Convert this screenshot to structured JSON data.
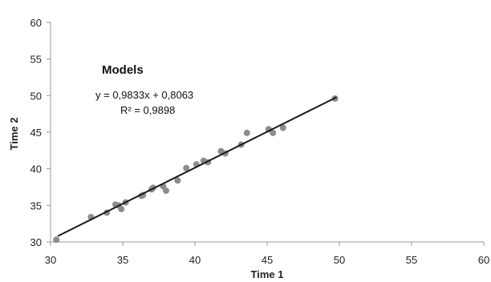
{
  "chart_data": {
    "type": "scatter",
    "xlabel": "Time 1",
    "ylabel": "Time 2",
    "xlim": [
      30,
      60
    ],
    "ylim": [
      30,
      60
    ],
    "xticks": [
      "30",
      "35",
      "40",
      "45",
      "50",
      "55",
      "60"
    ],
    "yticks": [
      "30",
      "35",
      "40",
      "45",
      "50",
      "55",
      "60"
    ],
    "grid": false,
    "legend": "none",
    "annotation_title": "Models",
    "equation": "y = 0,9833x + 0,8063",
    "r_squared": "R² = 0,9898",
    "trendline": {
      "slope": 0.9833,
      "intercept": 0.8063,
      "x_range": [
        30.5,
        49.8
      ]
    },
    "marker_color": "#8c8c8c",
    "line_color": "#1a1a1a",
    "points": [
      {
        "x": 30.4,
        "y": 30.3
      },
      {
        "x": 32.8,
        "y": 33.4
      },
      {
        "x": 33.9,
        "y": 34.0
      },
      {
        "x": 34.5,
        "y": 35.1
      },
      {
        "x": 34.7,
        "y": 35.0
      },
      {
        "x": 34.9,
        "y": 34.5
      },
      {
        "x": 35.2,
        "y": 35.4
      },
      {
        "x": 36.3,
        "y": 36.3
      },
      {
        "x": 36.4,
        "y": 36.4
      },
      {
        "x": 37.0,
        "y": 37.2
      },
      {
        "x": 37.1,
        "y": 37.4
      },
      {
        "x": 37.8,
        "y": 37.6
      },
      {
        "x": 38.0,
        "y": 37.0
      },
      {
        "x": 38.8,
        "y": 38.4
      },
      {
        "x": 39.4,
        "y": 40.1
      },
      {
        "x": 40.1,
        "y": 40.6
      },
      {
        "x": 40.6,
        "y": 41.1
      },
      {
        "x": 40.9,
        "y": 40.9
      },
      {
        "x": 41.8,
        "y": 42.4
      },
      {
        "x": 42.1,
        "y": 42.1
      },
      {
        "x": 43.2,
        "y": 43.3
      },
      {
        "x": 43.6,
        "y": 44.9
      },
      {
        "x": 45.1,
        "y": 45.4
      },
      {
        "x": 45.4,
        "y": 44.9
      },
      {
        "x": 46.1,
        "y": 45.6
      },
      {
        "x": 49.7,
        "y": 49.6
      }
    ]
  }
}
